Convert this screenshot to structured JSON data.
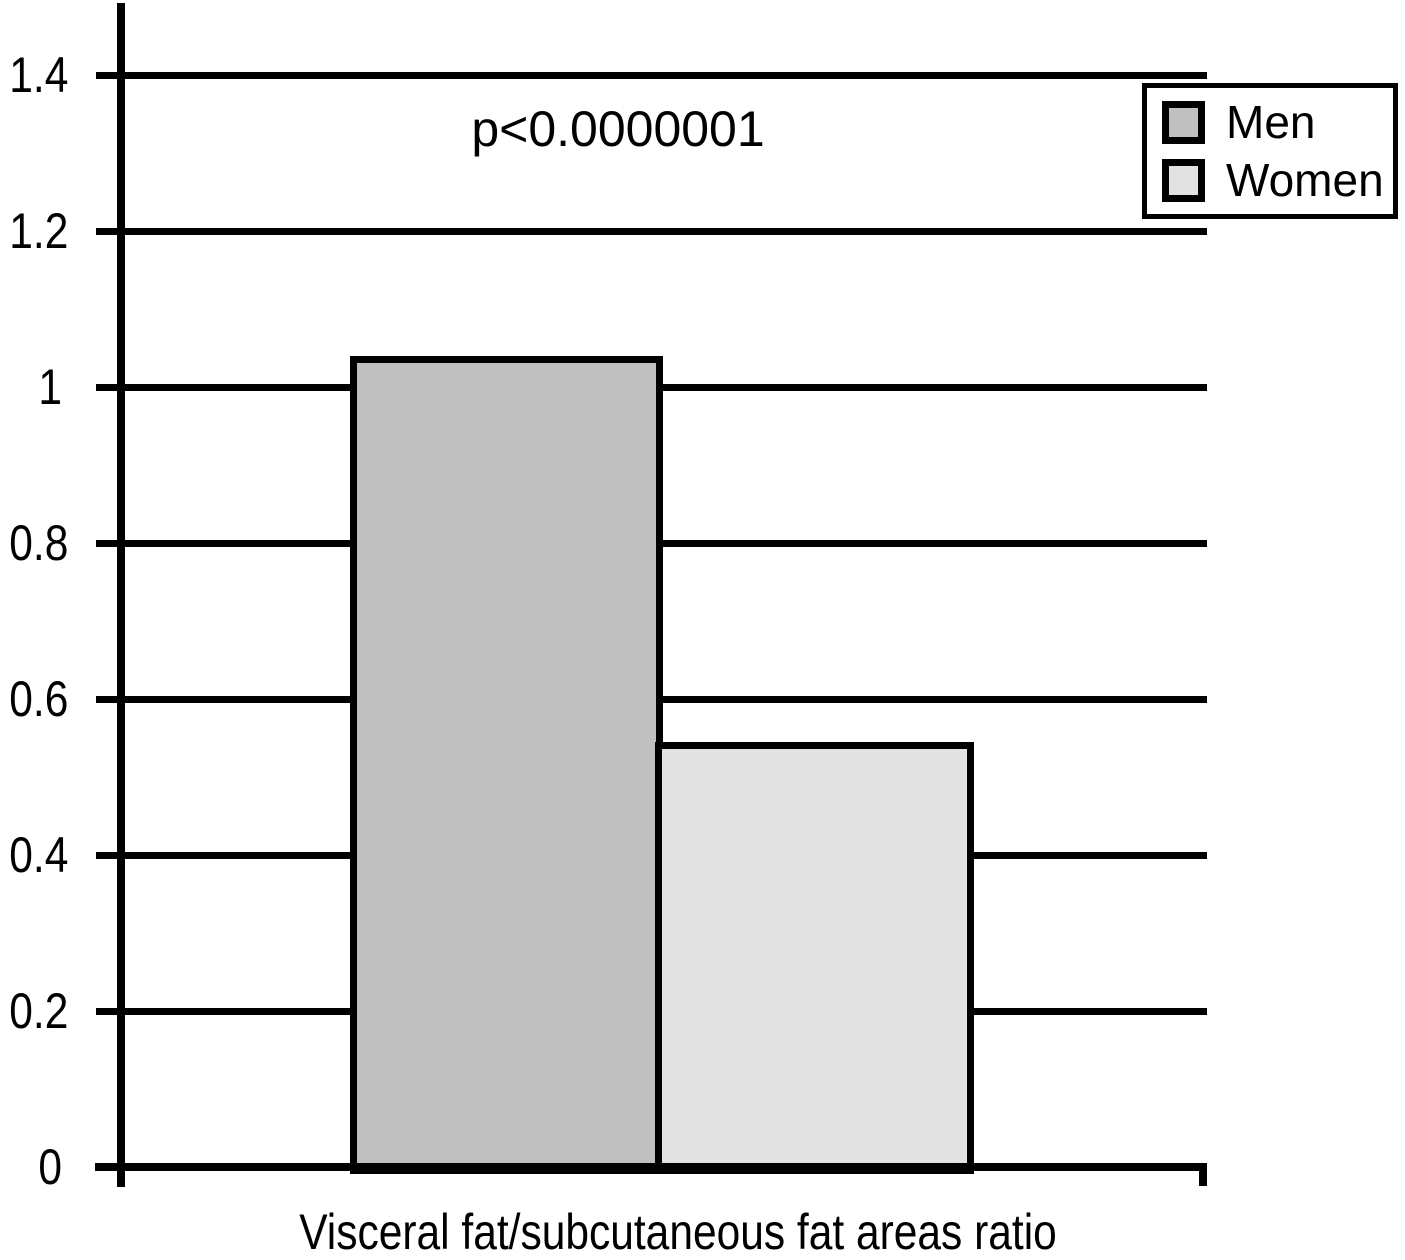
{
  "chart_data": {
    "type": "bar",
    "categories": [
      "Visceral fat/subcutaneous fat areas ratio"
    ],
    "series": [
      {
        "name": "Men",
        "values": [
          1.04
        ],
        "color": "#c0c0c0"
      },
      {
        "name": "Women",
        "values": [
          0.545
        ],
        "color": "#e2e2e2"
      }
    ],
    "title": "",
    "xlabel": "Visceral fat/subcutaneous fat areas ratio",
    "ylabel": "",
    "ylim": [
      0,
      1.4
    ],
    "ytick_interval": 0.2,
    "yticks": [
      "0",
      "0.2",
      "0.4",
      "0.6",
      "0.8",
      "1",
      "1.2",
      "1.4"
    ],
    "grid": true,
    "legend_position": "top-right",
    "annotation": "p<0.0000001"
  },
  "legend": {
    "items": [
      {
        "label": "Men",
        "color": "#c0c0c0"
      },
      {
        "label": "Women",
        "color": "#e2e2e2"
      }
    ]
  },
  "colors": {
    "axis": "#000000",
    "background": "#ffffff",
    "men_bar": "#c0c0c0",
    "women_bar": "#e2e2e2"
  }
}
